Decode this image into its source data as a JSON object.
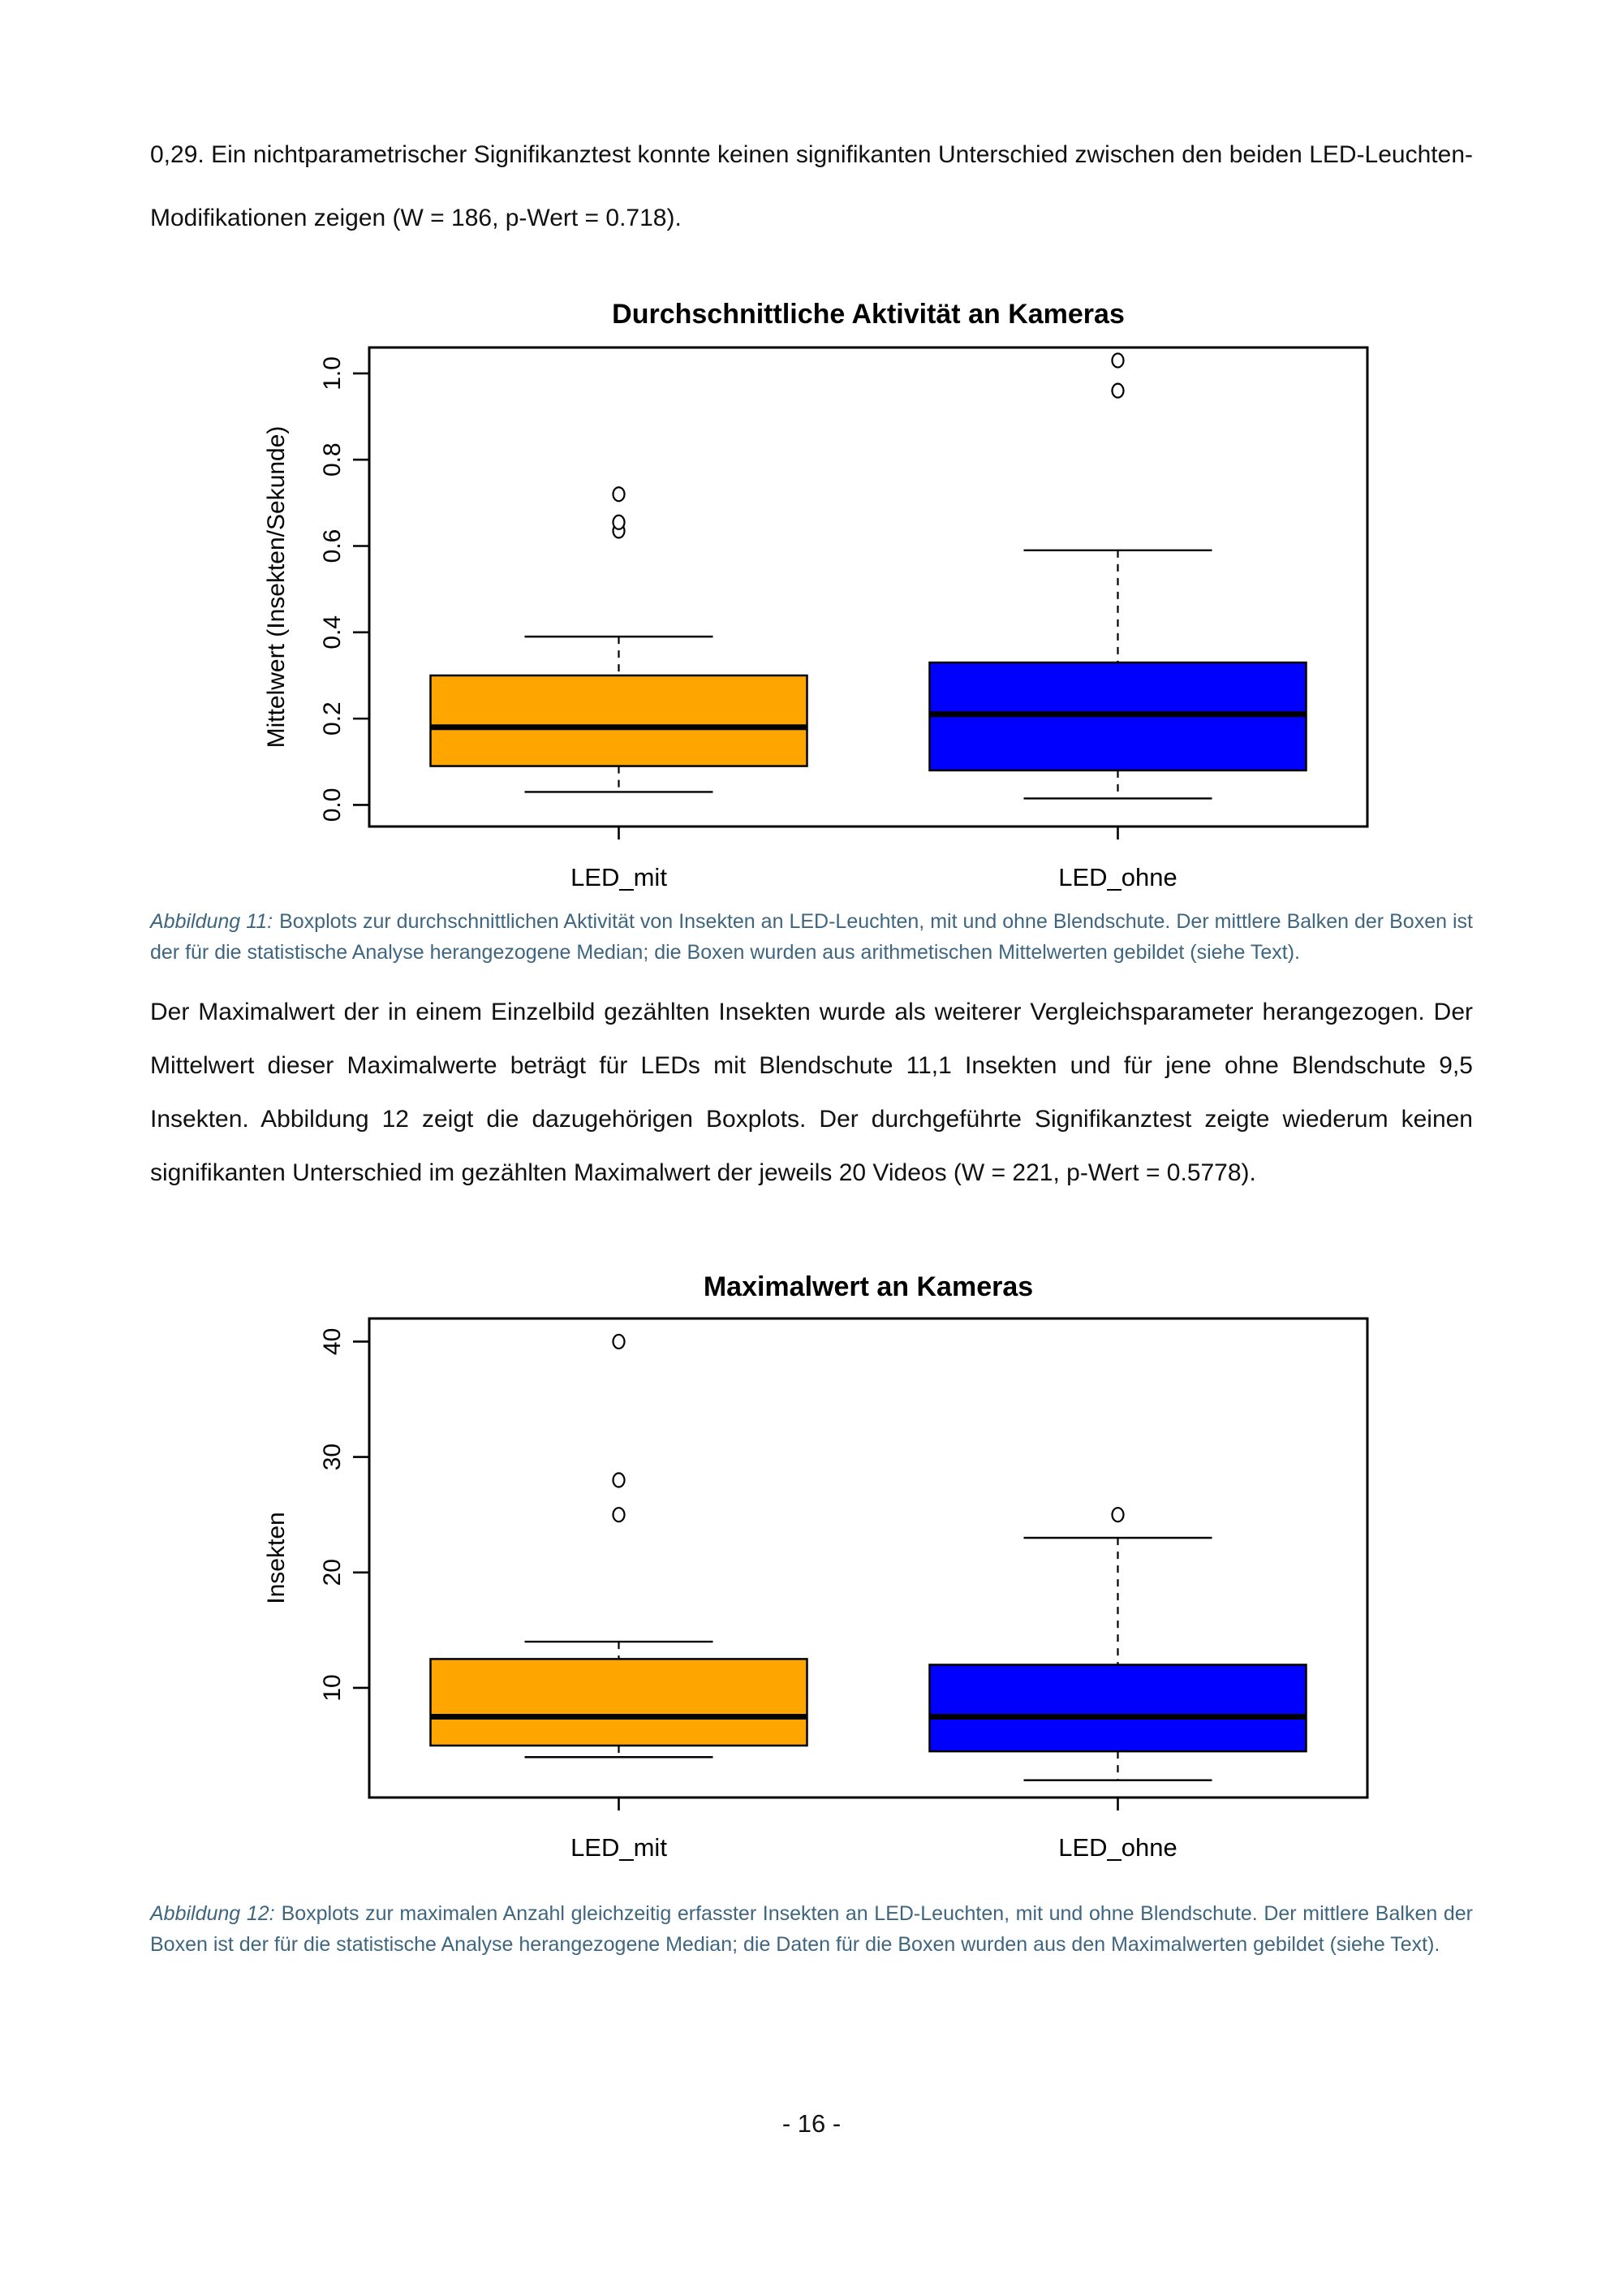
{
  "page": {
    "paragraph1": "0,29. Ein nichtparametrischer Signifikanztest konnte keinen signifikanten Unterschied zwischen den beiden LED-Leuchten-Modifikationen zeigen (W = 186, p-Wert = 0.718).",
    "paragraph2": "Der Maximalwert der in einem Einzelbild gezählten Insekten wurde als weiterer Vergleichsparameter herangezogen. Der Mittelwert dieser Maximalwerte beträgt für LEDs mit Blendschute 11,1 Insekten und für jene ohne Blendschute 9,5 Insekten. Abbildung 12 zeigt die dazugehörigen Boxplots. Der durchgeführte Signifikanztest zeigte wiederum keinen signifikanten Unterschied im gezählten Maximalwert der jeweils 20 Videos (W = 221, p-Wert = 0.5778).",
    "page_number": "- 16 -"
  },
  "captions": {
    "fig11": {
      "prefix": "Abbildung 11:",
      "text": "Boxplots zur durchschnittlichen Aktivität von Insekten an LED-Leuchten, mit und ohne Blendschute. Der mittlere Balken der Boxen ist der für die statistische Analyse herangezogene Median; die Boxen wurden aus arithmetischen Mittelwerten gebildet (siehe Text)."
    },
    "fig12": {
      "prefix": "Abbildung 12:",
      "text": "Boxplots zur maximalen Anzahl gleichzeitig erfasster Insekten an LED-Leuchten, mit und ohne Blendschute. Der mittlere Balken der Boxen ist der für die statistische Analyse herangezogene Median; die Daten für die Boxen wurden aus den Maximalwerten gebildet (siehe Text)."
    }
  },
  "chart_data": [
    {
      "type": "boxplot",
      "title": "Durchschnittliche Aktivität an Kameras",
      "xlabel": "",
      "ylabel": "Mittelwert (Insekten/Sekunde)",
      "ylim": [
        -0.05,
        1.06
      ],
      "grid": false,
      "legend": "none",
      "tick_label_orientation": "rotated-90",
      "frame": true,
      "yticks": [
        {
          "value": 0.0,
          "label": "0.0"
        },
        {
          "value": 0.2,
          "label": "0.2"
        },
        {
          "value": 0.4,
          "label": "0.4"
        },
        {
          "value": 0.6,
          "label": "0.6"
        },
        {
          "value": 0.8,
          "label": "0.8"
        },
        {
          "value": 1.0,
          "label": "1.0"
        }
      ],
      "categories": [
        "LED_mit",
        "LED_ohne"
      ],
      "series": [
        {
          "name": "LED_mit",
          "color": "#FFA500",
          "whisker_low": 0.03,
          "q1": 0.09,
          "median": 0.18,
          "q3": 0.3,
          "whisker_high": 0.39,
          "outliers": [
            0.635,
            0.655,
            0.72
          ]
        },
        {
          "name": "LED_ohne",
          "color": "#0000FF",
          "whisker_low": 0.015,
          "q1": 0.08,
          "median": 0.21,
          "q3": 0.33,
          "whisker_high": 0.59,
          "outliers": [
            0.96,
            1.03
          ]
        }
      ]
    },
    {
      "type": "boxplot",
      "title": "Maximalwert an Kameras",
      "xlabel": "",
      "ylabel": "Insekten",
      "ylim": [
        0.5,
        42
      ],
      "grid": false,
      "legend": "none",
      "tick_label_orientation": "rotated-90",
      "frame": true,
      "yticks": [
        {
          "value": 10,
          "label": "10"
        },
        {
          "value": 20,
          "label": "20"
        },
        {
          "value": 30,
          "label": "30"
        },
        {
          "value": 40,
          "label": "40"
        }
      ],
      "categories": [
        "LED_mit",
        "LED_ohne"
      ],
      "series": [
        {
          "name": "LED_mit",
          "color": "#FFA500",
          "whisker_low": 4,
          "q1": 5,
          "median": 7.5,
          "q3": 12.5,
          "whisker_high": 14,
          "outliers": [
            25,
            28,
            40
          ]
        },
        {
          "name": "LED_ohne",
          "color": "#0000FF",
          "whisker_low": 2,
          "q1": 4.5,
          "median": 7.5,
          "q3": 12,
          "whisker_high": 23,
          "outliers": [
            25
          ]
        }
      ]
    }
  ]
}
